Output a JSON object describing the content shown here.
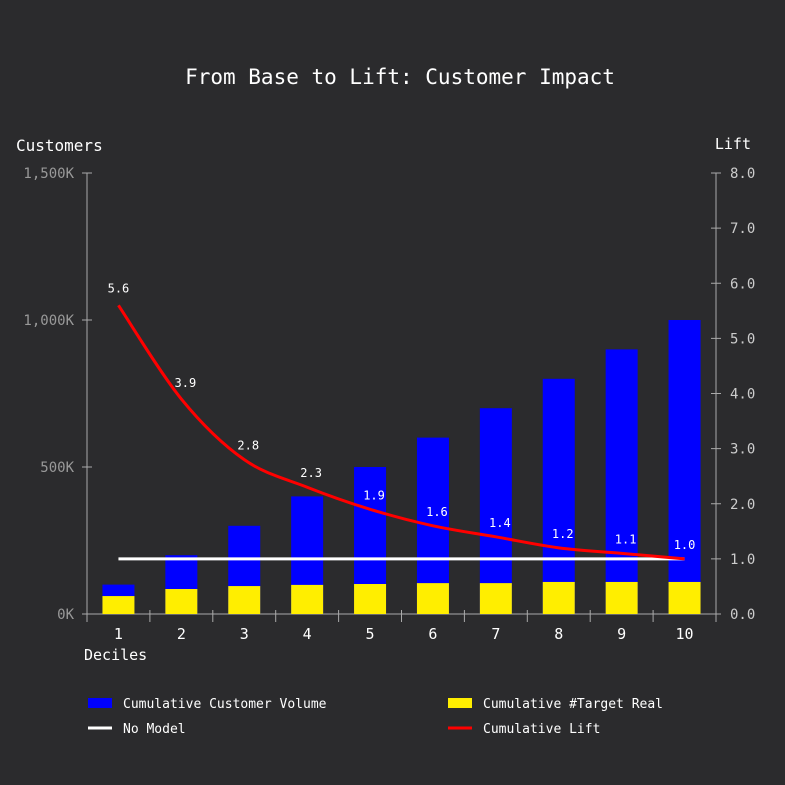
{
  "chart_data": {
    "type": "bar",
    "title": "From Base to Lift: Customer Impact",
    "xlabel": "Deciles",
    "ylabel": "Customers",
    "y2label": "Lift",
    "categories": [
      "1",
      "2",
      "3",
      "4",
      "5",
      "6",
      "7",
      "8",
      "9",
      "10"
    ],
    "ylim": [
      0,
      1500
    ],
    "y_ticks": [
      {
        "v": 0,
        "label": "0K"
      },
      {
        "v": 500,
        "label": "500K"
      },
      {
        "v": 1000,
        "label": "1,000K"
      },
      {
        "v": 1500,
        "label": "1,500K"
      }
    ],
    "y2lim": [
      0,
      8
    ],
    "y2_ticks": [
      "0.0",
      "1.0",
      "2.0",
      "3.0",
      "4.0",
      "5.0",
      "6.0",
      "7.0",
      "8.0"
    ],
    "series": [
      {
        "name": "Cumulative Customer Volume",
        "type": "bar",
        "color": "#0000ff",
        "values": [
          100,
          200,
          300,
          400,
          500,
          600,
          700,
          800,
          900,
          1000
        ]
      },
      {
        "name": "Cumulative #Target Real",
        "type": "bar",
        "color": "#ffee00",
        "values": [
          61,
          85,
          95,
          99,
          102,
          105,
          105,
          109,
          109,
          109
        ]
      },
      {
        "name": "No Model",
        "type": "line",
        "axis": "right",
        "color": "#ffffff",
        "values": [
          1,
          1,
          1,
          1,
          1,
          1,
          1,
          1,
          1,
          1
        ]
      },
      {
        "name": "Cumulative  Lift",
        "type": "line",
        "axis": "right",
        "color": "#ff0000",
        "values": [
          5.6,
          3.9,
          2.8,
          2.3,
          1.9,
          1.6,
          1.4,
          1.2,
          1.1,
          1.0
        ],
        "labels": [
          "5.6",
          "3.9",
          "2.8",
          "2.3",
          "1.9",
          "1.6",
          "1.4",
          "1.2",
          "1.1",
          "1.0"
        ]
      }
    ],
    "legend_position": "bottom"
  }
}
